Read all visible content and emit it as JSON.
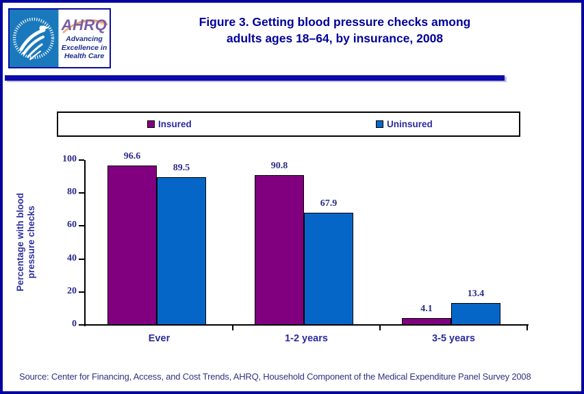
{
  "colors": {
    "page_border": "#0303A0",
    "title_navy": "#00009B",
    "label_navy": "#2B2B9E",
    "insured_purple": "#800080",
    "uninsured_blue": "#0666C8",
    "hhs_seal_blue": "#1A79BC",
    "ahrq_purple": "#7A5CA8",
    "swoosh_orange": "#E59A5C"
  },
  "header": {
    "logo": {
      "ahrq_text": "AHRQ",
      "tagline_line1": "Advancing",
      "tagline_line2": "Excellence in",
      "tagline_line3": "Health Care"
    },
    "title_line1": "Figure 3. Getting blood pressure checks among",
    "title_line2": "adults ages 18–64, by insurance, 2008"
  },
  "chart_data": {
    "type": "bar",
    "title": "Figure 3. Getting blood pressure checks among adults ages 18–64, by insurance, 2008",
    "categories": [
      "Ever",
      "1-2 years",
      "3-5 years"
    ],
    "series": [
      {
        "name": "Insured",
        "color": "#800080",
        "values": [
          96.6,
          90.8,
          4.1
        ]
      },
      {
        "name": "Uninsured",
        "color": "#0666C8",
        "values": [
          89.5,
          67.9,
          13.4
        ]
      }
    ],
    "ylabel": "Percentage with blood pressure checks",
    "ylim": [
      0,
      100
    ],
    "yticks": [
      0,
      20,
      40,
      60,
      80,
      100
    ],
    "grid": false,
    "legend_position": "top"
  },
  "footer": {
    "source": "Source: Center for Financing, Access, and Cost Trends, AHRQ, Household Component of the Medical Expenditure Panel Survey 2008"
  }
}
